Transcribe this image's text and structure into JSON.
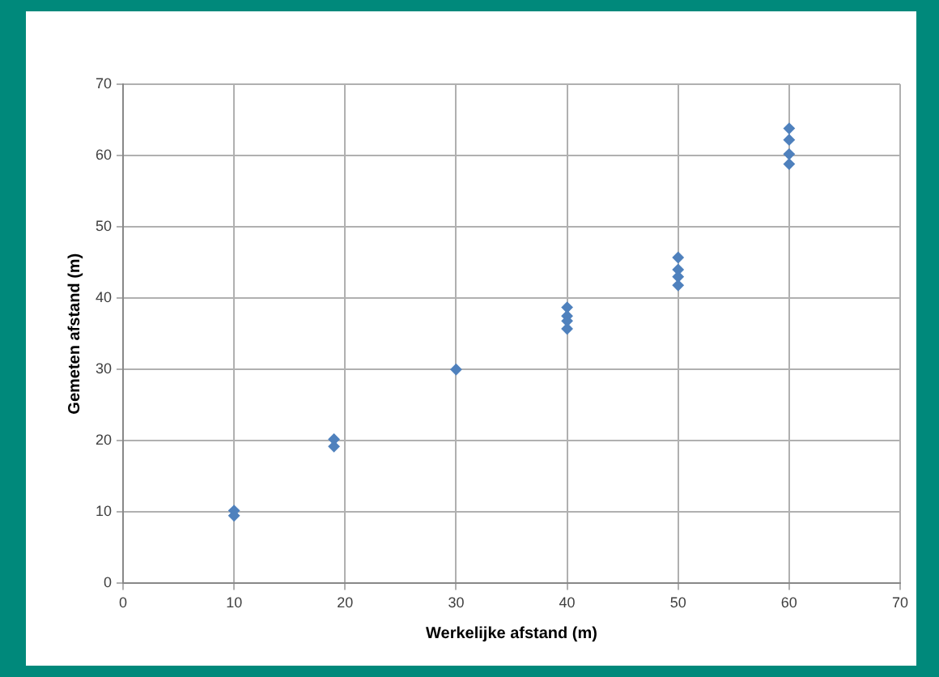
{
  "chart_data": {
    "type": "scatter",
    "xlabel": "Werkelijke afstand (m)",
    "ylabel": "Gemeten afstand (m)",
    "x": [
      10,
      10,
      19,
      19,
      30,
      40,
      40,
      40,
      40,
      50,
      50,
      50,
      50,
      60,
      60,
      60,
      60
    ],
    "series": [
      {
        "color": "#4f81bd",
        "values": [
          10.2,
          9.5,
          19.2,
          20.2,
          30,
          38.7,
          37.5,
          36.8,
          35.7,
          45.7,
          44,
          43,
          41.8,
          63.8,
          62.2,
          60.2,
          58.8
        ]
      }
    ],
    "xlim": [
      0,
      70
    ],
    "xticks": [
      0,
      10,
      20,
      30,
      40,
      50,
      60,
      70
    ],
    "ylim": [
      0,
      70
    ],
    "yticks": [
      0,
      10,
      20,
      30,
      40,
      50,
      60,
      70
    ],
    "grid": true,
    "marker": "diamond",
    "legend": false
  }
}
